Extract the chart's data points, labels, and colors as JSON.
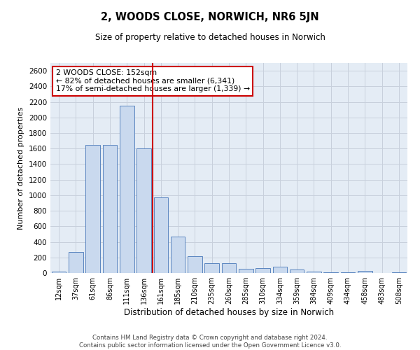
{
  "title": "2, WOODS CLOSE, NORWICH, NR6 5JN",
  "subtitle": "Size of property relative to detached houses in Norwich",
  "xlabel": "Distribution of detached houses by size in Norwich",
  "ylabel": "Number of detached properties",
  "categories": [
    "12sqm",
    "37sqm",
    "61sqm",
    "86sqm",
    "111sqm",
    "136sqm",
    "161sqm",
    "185sqm",
    "210sqm",
    "235sqm",
    "260sqm",
    "285sqm",
    "310sqm",
    "334sqm",
    "359sqm",
    "384sqm",
    "409sqm",
    "434sqm",
    "458sqm",
    "483sqm",
    "508sqm"
  ],
  "values": [
    18,
    270,
    1650,
    1650,
    2150,
    1600,
    970,
    470,
    220,
    130,
    130,
    55,
    60,
    80,
    45,
    18,
    8,
    8,
    28,
    4,
    12
  ],
  "bar_color": "#c9d9ee",
  "bar_edge_color": "#5b86c0",
  "property_line_x": 5.5,
  "property_line_color": "#cc0000",
  "annotation_text": "2 WOODS CLOSE: 152sqm\n← 82% of detached houses are smaller (6,341)\n17% of semi-detached houses are larger (1,339) →",
  "annotation_box_color": "#ffffff",
  "annotation_box_edge": "#cc0000",
  "ylim": [
    0,
    2700
  ],
  "yticks": [
    0,
    200,
    400,
    600,
    800,
    1000,
    1200,
    1400,
    1600,
    1800,
    2000,
    2200,
    2400,
    2600
  ],
  "grid_color": "#c8d0dc",
  "bg_color": "#e4ecf5",
  "footer_line1": "Contains HM Land Registry data © Crown copyright and database right 2024.",
  "footer_line2": "Contains public sector information licensed under the Open Government Licence v3.0."
}
